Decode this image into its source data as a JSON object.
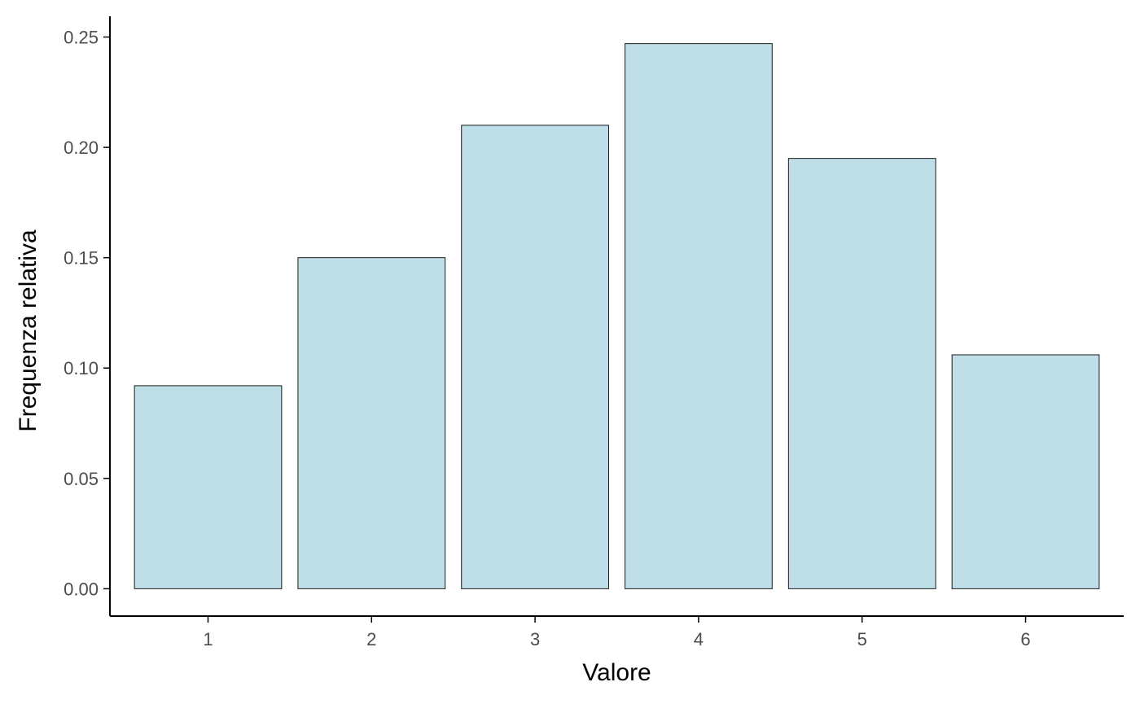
{
  "chart_data": {
    "type": "bar",
    "categories": [
      "1",
      "2",
      "3",
      "4",
      "5",
      "6"
    ],
    "values": [
      0.092,
      0.15,
      0.21,
      0.247,
      0.195,
      0.106
    ],
    "xlabel": "Valore",
    "ylabel": "Frequenza relativa",
    "ylim": [
      -0.0124,
      0.2594
    ],
    "yticks": [
      0.0,
      0.05,
      0.1,
      0.15,
      0.2,
      0.25
    ],
    "ytick_labels": [
      "0.00",
      "0.05",
      "0.10",
      "0.15",
      "0.20",
      "0.25"
    ],
    "grid": false,
    "legend": "none",
    "colors": {
      "bar_fill": "#bfdfe8",
      "bar_stroke": "#1a1a1a",
      "axis": "#000000",
      "tick_text": "#4d4d4d"
    }
  }
}
